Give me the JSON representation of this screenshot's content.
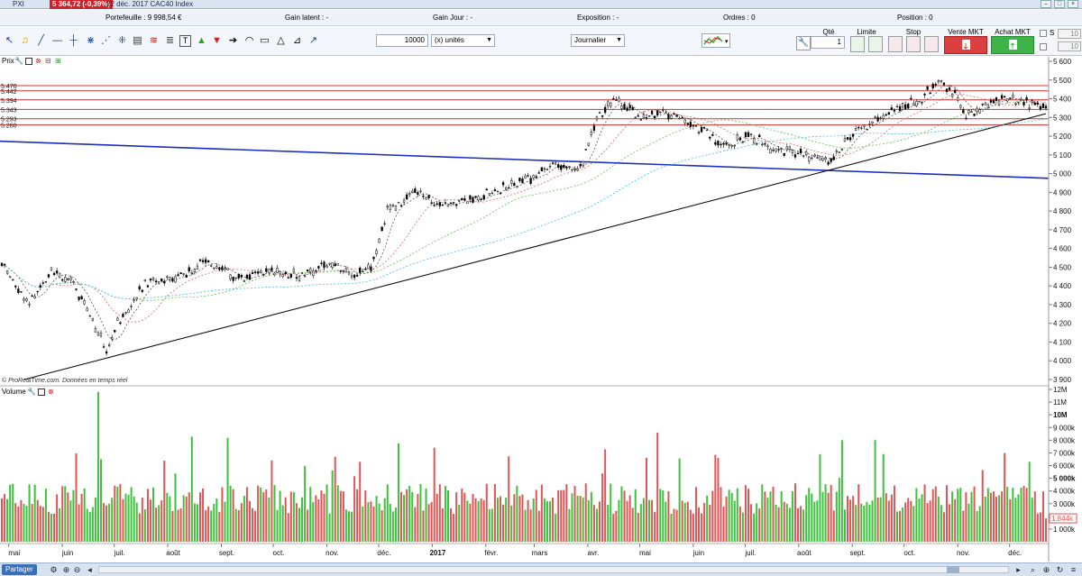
{
  "titlebar": {
    "symbol": "PXI",
    "price": "5 364,72 (-0,39%)",
    "date_instrument": "22 déc. 2017 CAC40 Index"
  },
  "status": {
    "portefeuille": "Portefeuille : 9 998,54 €",
    "gain_latent": "Gain latent : -",
    "gain_jour": "Gain Jour : -",
    "exposition": "Exposition : -",
    "ordres": "Ordres : 0",
    "position": "Position : 0",
    "zero": "0"
  },
  "toolbar": {
    "quantity": "10000",
    "unit_select": "(x) unités",
    "period_select": "Journalier"
  },
  "order_panel": {
    "qte_label": "Qté",
    "qte_value": "1",
    "limite_label": "Limite",
    "stop_label": "Stop",
    "vente_label": "Vente MKT",
    "achat_label": "Achat MKT",
    "s_label": "S",
    "s_value": "10",
    "t_value": "10"
  },
  "price_panel": {
    "title": "Prix",
    "copyright": "© ProRealTime.com. Données en temps réel",
    "hlines": [
      "5.470",
      "5.442",
      "5.394",
      "5.343",
      "5.293",
      "5.260"
    ],
    "yticks": [
      "5 600",
      "5 500",
      "5 400",
      "5 300",
      "5 200",
      "5 100",
      "5 000",
      "4 900",
      "4 800",
      "4 700",
      "4 600",
      "4 500",
      "4 400",
      "4 300",
      "4 200",
      "4 100",
      "4 000",
      "3 900"
    ]
  },
  "volume_panel": {
    "title": "Volume",
    "yticks": [
      "12M",
      "11M",
      "10M",
      "9 000k",
      "8 000k",
      "7 000k",
      "6 000k",
      "5 000k",
      "4 000k",
      "3 000k",
      "2 000k",
      "1 000k"
    ],
    "last_value": "1.844k"
  },
  "xaxis": {
    "labels": [
      "mai",
      "juin",
      "juil.",
      "août",
      "sept.",
      "oct.",
      "nov.",
      "déc.",
      "2017",
      "févr.",
      "mars",
      "avr.",
      "mai",
      "juin",
      "juil.",
      "août",
      "sept.",
      "oct.",
      "nov.",
      "déc."
    ]
  },
  "bottombar": {
    "partager": "Partager"
  },
  "chart_data": {
    "type": "candlestick",
    "ylim": [
      3900,
      5600
    ],
    "volume_ylim": [
      0,
      12000000
    ],
    "price_anchors": [
      [
        0,
        4520
      ],
      [
        10,
        4300
      ],
      [
        18,
        4500
      ],
      [
        26,
        4400
      ],
      [
        32,
        4250
      ],
      [
        38,
        4050
      ],
      [
        42,
        4200
      ],
      [
        52,
        4420
      ],
      [
        65,
        4450
      ],
      [
        75,
        4540
      ],
      [
        85,
        4440
      ],
      [
        95,
        4480
      ],
      [
        108,
        4450
      ],
      [
        118,
        4520
      ],
      [
        126,
        4460
      ],
      [
        134,
        4500
      ],
      [
        140,
        4800
      ],
      [
        150,
        4900
      ],
      [
        160,
        4840
      ],
      [
        170,
        4860
      ],
      [
        182,
        4920
      ],
      [
        192,
        4980
      ],
      [
        202,
        5050
      ],
      [
        210,
        5030
      ],
      [
        216,
        5280
      ],
      [
        222,
        5400
      ],
      [
        232,
        5300
      ],
      [
        240,
        5330
      ],
      [
        250,
        5270
      ],
      [
        262,
        5150
      ],
      [
        272,
        5200
      ],
      [
        282,
        5120
      ],
      [
        292,
        5100
      ],
      [
        300,
        5060
      ],
      [
        308,
        5200
      ],
      [
        318,
        5300
      ],
      [
        326,
        5360
      ],
      [
        334,
        5400
      ],
      [
        340,
        5500
      ],
      [
        346,
        5420
      ],
      [
        350,
        5310
      ],
      [
        358,
        5380
      ],
      [
        366,
        5400
      ],
      [
        374,
        5370
      ],
      [
        378,
        5360
      ]
    ],
    "trendlines": [
      {
        "name": "blue",
        "from": [
          "2016-04-20",
          5175
        ],
        "to": [
          "2017-12-31",
          4975
        ],
        "color": "#1a2fbf"
      },
      {
        "name": "black",
        "from": [
          "2016-05-10",
          3900
        ],
        "to": [
          "2017-12-22",
          5320
        ],
        "color": "#111111"
      }
    ],
    "colors": {
      "up": "#3cc23c",
      "down": "#e05555",
      "ma_fast": "#555555",
      "ma_mid": "#d86b6b",
      "ma_slow": "#64c24f",
      "ma_long": "#42bde0",
      "hline": "#cc3333"
    }
  }
}
